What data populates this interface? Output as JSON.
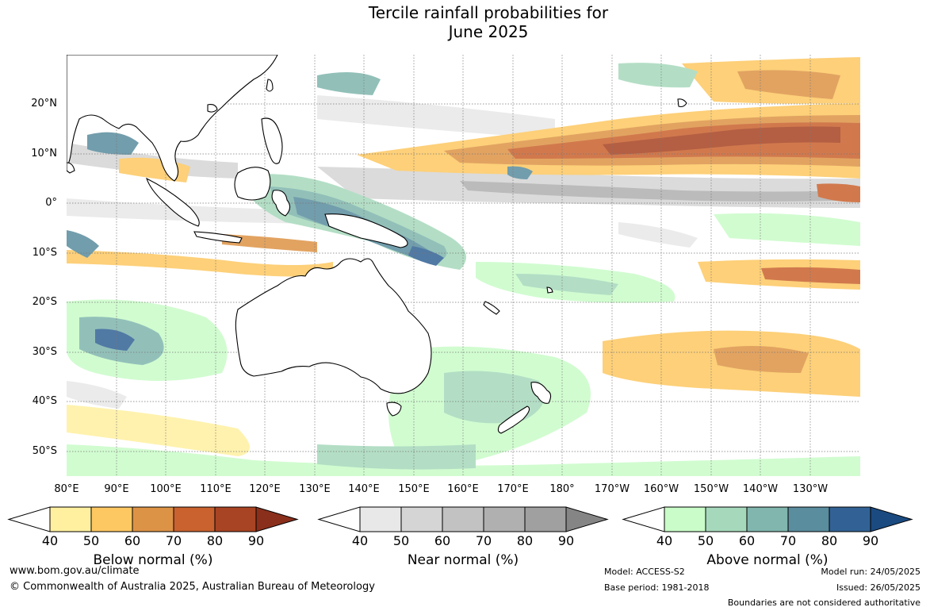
{
  "title": {
    "line1": "Tercile rainfall probabilities for",
    "line2": "June 2025"
  },
  "map": {
    "lat_labels": [
      "20°N",
      "10°N",
      "0°",
      "10°S",
      "20°S",
      "30°S",
      "40°S",
      "50°S"
    ],
    "lon_labels": [
      "80°E",
      "90°E",
      "100°E",
      "110°E",
      "120°E",
      "130°E",
      "140°E",
      "150°E",
      "160°E",
      "170°E",
      "180°",
      "170°W",
      "160°W",
      "150°W",
      "140°W",
      "130°W"
    ],
    "colors": {
      "land": "#ffffff",
      "coastline": "#000000",
      "gridline": "#666666"
    }
  },
  "colorbars": [
    {
      "name": "below",
      "label": "Below normal (%)",
      "ticks": [
        "40",
        "50",
        "60",
        "70",
        "80",
        "90"
      ],
      "colors": [
        "#fff0a0",
        "#fdc862",
        "#dd9346",
        "#c9622f",
        "#a84423",
        "#8a2f1c"
      ]
    },
    {
      "name": "near",
      "label": "Near normal (%)",
      "ticks": [
        "40",
        "50",
        "60",
        "70",
        "80",
        "90"
      ],
      "colors": [
        "#e8e8e8",
        "#d5d5d5",
        "#c2c2c2",
        "#b0b0b0",
        "#a0a0a0",
        "#858585"
      ]
    },
    {
      "name": "above",
      "label": "Above normal (%)",
      "ticks": [
        "40",
        "50",
        "60",
        "70",
        "80",
        "90"
      ],
      "colors": [
        "#c9fcc8",
        "#a6d9bc",
        "#80b6ad",
        "#5a8d9e",
        "#326295",
        "#1a4a80"
      ]
    }
  ],
  "footer": {
    "url": "www.bom.gov.au/climate",
    "copyright": "© Commonwealth of Australia 2025, Australian Bureau of Meteorology",
    "model": "Model: ACCESS-S2",
    "base_period": "Base period: 1981-2018",
    "model_run": "Model run: 24/05/2025",
    "issued": "Issued: 26/05/2025",
    "disclaimer": "Boundaries are not considered authoritative"
  }
}
